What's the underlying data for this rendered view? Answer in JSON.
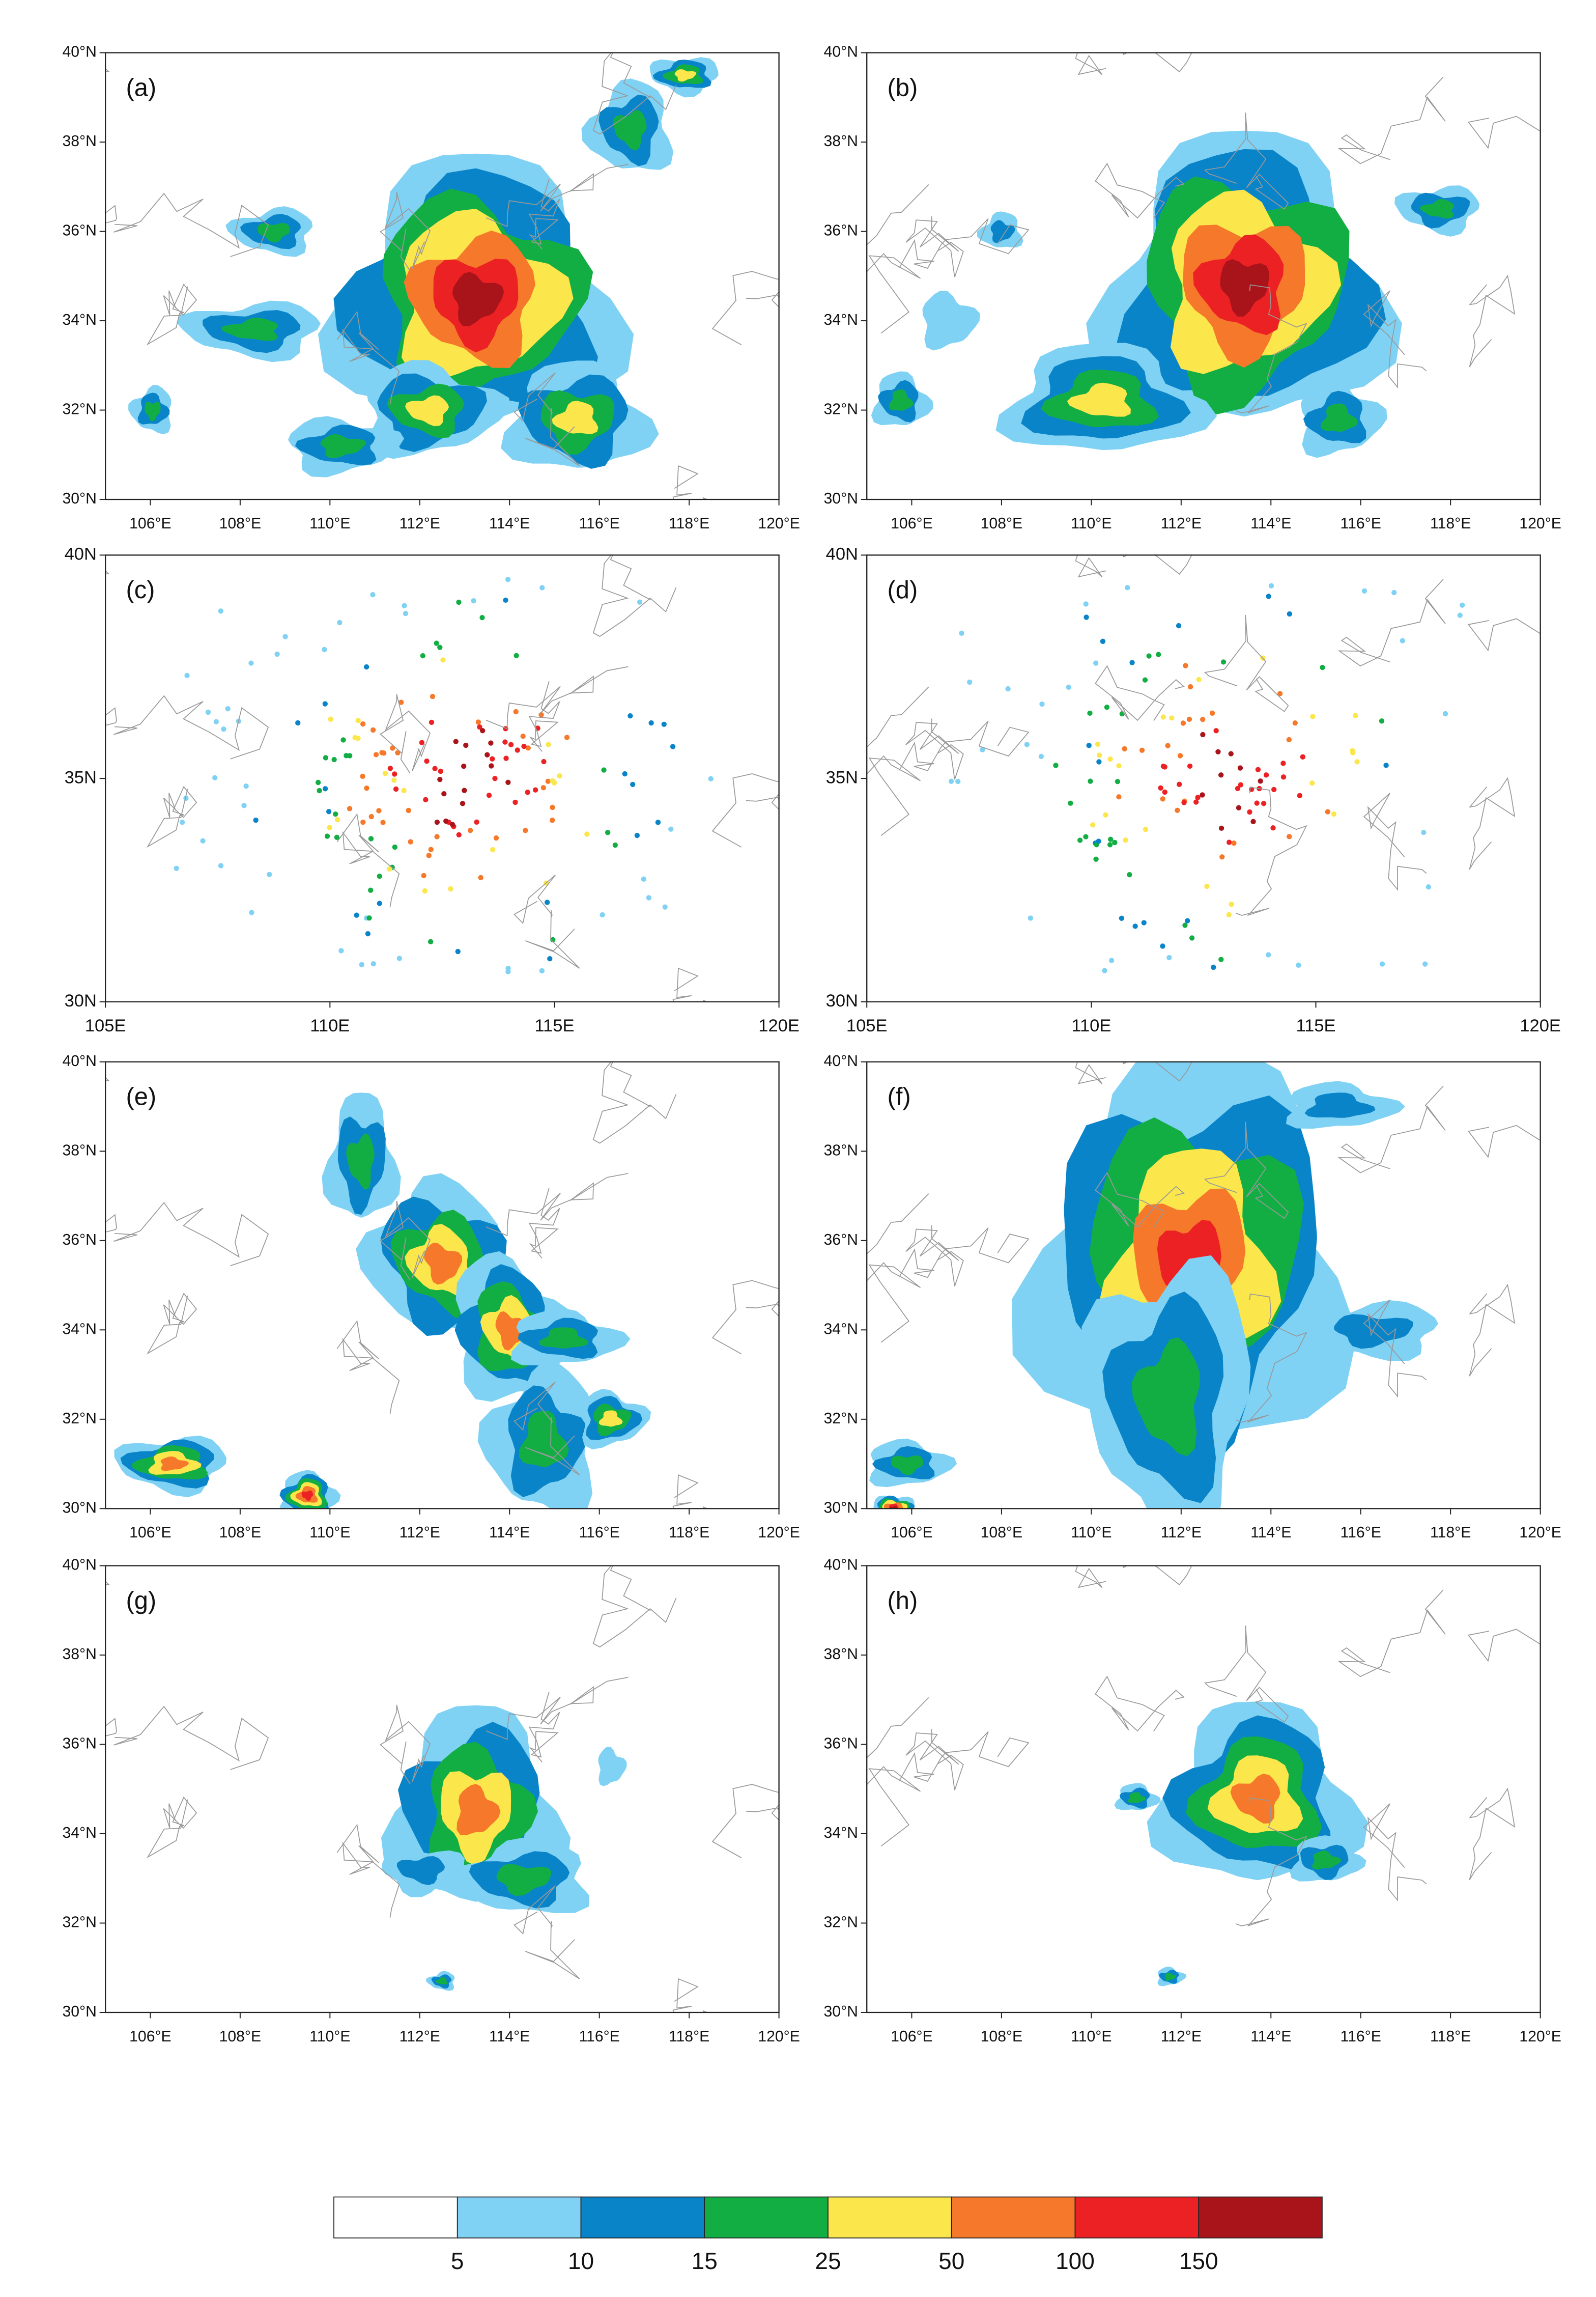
{
  "panels": [
    {
      "label": "(a)"
    },
    {
      "label": "(b)"
    },
    {
      "label": "(c)"
    },
    {
      "label": "(d)"
    },
    {
      "label": "(e)"
    },
    {
      "label": "(f)"
    },
    {
      "label": "(g)"
    },
    {
      "label": "(h)"
    }
  ],
  "axes": {
    "deg": {
      "lon": [
        "106°E",
        "108°E",
        "110°E",
        "112°E",
        "114°E",
        "116°E",
        "118°E",
        "120°E"
      ],
      "lat": [
        "30°N",
        "32°N",
        "34°N",
        "36°N",
        "38°N",
        "40°N"
      ]
    },
    "plain": {
      "lon": [
        "105E",
        "110E",
        "115E",
        "120E"
      ],
      "lat": [
        "30N",
        "35N",
        "40N"
      ]
    }
  },
  "colorbar": {
    "ticks": [
      5,
      10,
      15,
      25,
      50,
      100,
      150
    ],
    "colors": [
      "#ffffff",
      "#80d2f4",
      "#0a84c8",
      "#12ae44",
      "#fbe64c",
      "#f6782a",
      "#ec2124",
      "#a8141a"
    ]
  }
}
